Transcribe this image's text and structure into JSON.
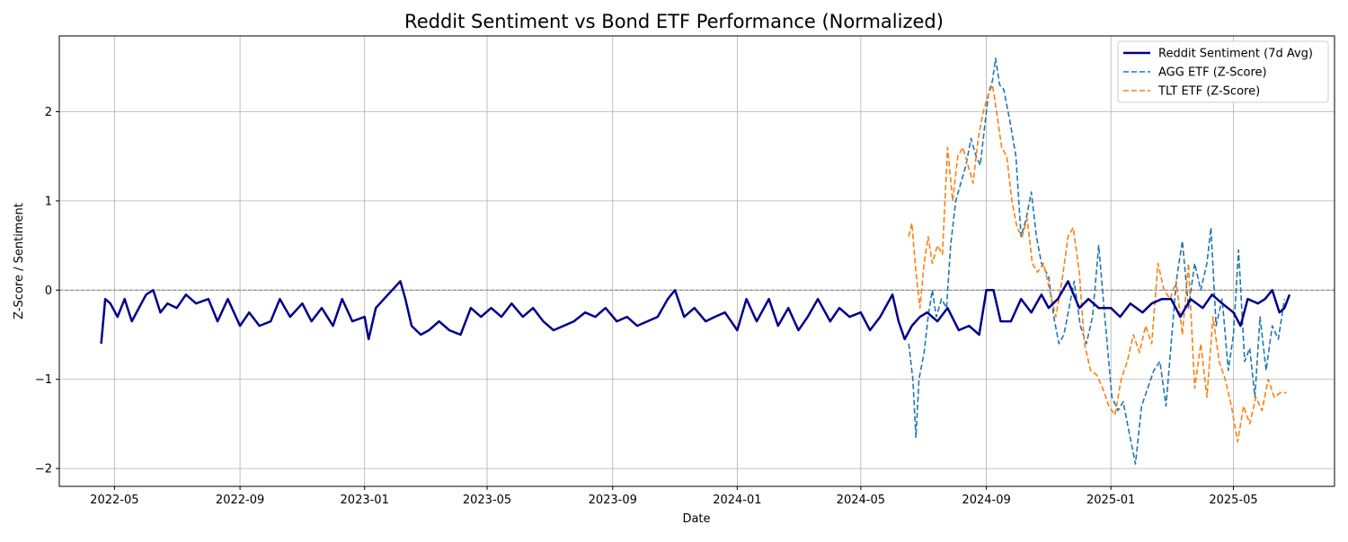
{
  "chart_data": {
    "type": "line",
    "title": "Reddit Sentiment vs Bond ETF Performance (Normalized)",
    "xlabel": "Date",
    "ylabel": "Z-Score / Sentiment",
    "xlim": [
      "2022-03-08",
      "2025-08-08"
    ],
    "ylim": [
      -2.2,
      2.85
    ],
    "x_ticks": [
      "2022-05",
      "2022-09",
      "2023-01",
      "2023-05",
      "2023-09",
      "2024-01",
      "2024-05",
      "2024-09",
      "2025-01",
      "2025-05"
    ],
    "y_ticks": [
      -2,
      -1,
      0,
      1,
      2
    ],
    "y_tick_labels": [
      "−2",
      "−1",
      "0",
      "1",
      "2"
    ],
    "grid": true,
    "reference_line": 0,
    "legend": {
      "position": "top-right"
    },
    "series": [
      {
        "name": "Reddit Sentiment (7d Avg)",
        "color": "#00008b",
        "style": "solid",
        "x": [
          "2022-04-18",
          "2022-04-22",
          "2022-04-27",
          "2022-05-04",
          "2022-05-11",
          "2022-05-18",
          "2022-05-25",
          "2022-06-01",
          "2022-06-08",
          "2022-06-15",
          "2022-06-22",
          "2022-07-01",
          "2022-07-10",
          "2022-07-20",
          "2022-08-01",
          "2022-08-10",
          "2022-08-20",
          "2022-09-01",
          "2022-09-10",
          "2022-09-20",
          "2022-10-01",
          "2022-10-10",
          "2022-10-20",
          "2022-11-01",
          "2022-11-10",
          "2022-11-20",
          "2022-12-01",
          "2022-12-10",
          "2022-12-20",
          "2023-01-01",
          "2023-01-05",
          "2023-01-12",
          "2023-01-20",
          "2023-01-28",
          "2023-02-05",
          "2023-02-10",
          "2023-02-16",
          "2023-02-25",
          "2023-03-05",
          "2023-03-15",
          "2023-03-25",
          "2023-04-05",
          "2023-04-15",
          "2023-04-25",
          "2023-05-05",
          "2023-05-15",
          "2023-05-25",
          "2023-06-05",
          "2023-06-15",
          "2023-06-25",
          "2023-07-05",
          "2023-07-15",
          "2023-07-25",
          "2023-08-05",
          "2023-08-15",
          "2023-08-25",
          "2023-09-05",
          "2023-09-15",
          "2023-09-25",
          "2023-10-05",
          "2023-10-15",
          "2023-10-25",
          "2023-11-01",
          "2023-11-10",
          "2023-11-20",
          "2023-12-01",
          "2023-12-10",
          "2023-12-20",
          "2024-01-01",
          "2024-01-10",
          "2024-01-20",
          "2024-02-01",
          "2024-02-10",
          "2024-02-20",
          "2024-03-01",
          "2024-03-10",
          "2024-03-20",
          "2024-04-01",
          "2024-04-10",
          "2024-04-20",
          "2024-05-01",
          "2024-05-10",
          "2024-05-20",
          "2024-06-01",
          "2024-06-07",
          "2024-06-13",
          "2024-06-20",
          "2024-06-28",
          "2024-07-05",
          "2024-07-15",
          "2024-07-25",
          "2024-08-05",
          "2024-08-15",
          "2024-08-25",
          "2024-09-01",
          "2024-09-08",
          "2024-09-15",
          "2024-09-25",
          "2024-10-05",
          "2024-10-15",
          "2024-10-25",
          "2024-11-01",
          "2024-11-10",
          "2024-11-20",
          "2024-12-01",
          "2024-12-10",
          "2024-12-20",
          "2025-01-01",
          "2025-01-10",
          "2025-01-20",
          "2025-02-01",
          "2025-02-10",
          "2025-02-20",
          "2025-03-01",
          "2025-03-10",
          "2025-03-20",
          "2025-04-01",
          "2025-04-10",
          "2025-04-20",
          "2025-05-01",
          "2025-05-08",
          "2025-05-15",
          "2025-05-25",
          "2025-06-01",
          "2025-06-08",
          "2025-06-15",
          "2025-06-20",
          "2025-06-25"
        ],
        "values": [
          -0.6,
          -0.1,
          -0.15,
          -0.3,
          -0.1,
          -0.35,
          -0.2,
          -0.05,
          0.0,
          -0.25,
          -0.15,
          -0.2,
          -0.05,
          -0.15,
          -0.1,
          -0.35,
          -0.1,
          -0.4,
          -0.25,
          -0.4,
          -0.35,
          -0.1,
          -0.3,
          -0.15,
          -0.35,
          -0.2,
          -0.4,
          -0.1,
          -0.35,
          -0.3,
          -0.55,
          -0.2,
          -0.1,
          0.0,
          0.1,
          -0.1,
          -0.4,
          -0.5,
          -0.45,
          -0.35,
          -0.45,
          -0.5,
          -0.2,
          -0.3,
          -0.2,
          -0.3,
          -0.15,
          -0.3,
          -0.2,
          -0.35,
          -0.45,
          -0.4,
          -0.35,
          -0.25,
          -0.3,
          -0.2,
          -0.35,
          -0.3,
          -0.4,
          -0.35,
          -0.3,
          -0.1,
          0.0,
          -0.3,
          -0.2,
          -0.35,
          -0.3,
          -0.25,
          -0.45,
          -0.1,
          -0.35,
          -0.1,
          -0.4,
          -0.2,
          -0.45,
          -0.3,
          -0.1,
          -0.35,
          -0.2,
          -0.3,
          -0.25,
          -0.45,
          -0.3,
          -0.05,
          -0.35,
          -0.55,
          -0.4,
          -0.3,
          -0.25,
          -0.35,
          -0.2,
          -0.45,
          -0.4,
          -0.5,
          0.0,
          0.0,
          -0.35,
          -0.35,
          -0.1,
          -0.25,
          -0.05,
          -0.2,
          -0.1,
          0.1,
          -0.2,
          -0.1,
          -0.2,
          -0.2,
          -0.3,
          -0.15,
          -0.25,
          -0.15,
          -0.1,
          -0.1,
          -0.3,
          -0.1,
          -0.2,
          -0.05,
          -0.15,
          -0.25,
          -0.4,
          -0.1,
          -0.15,
          -0.1,
          0.0,
          -0.25,
          -0.2,
          -0.05
        ]
      },
      {
        "name": "AGG ETF (Z-Score)",
        "color": "#1f77b4",
        "style": "dashed",
        "x": [
          "2024-06-17",
          "2024-06-21",
          "2024-06-24",
          "2024-06-27",
          "2024-07-02",
          "2024-07-06",
          "2024-07-10",
          "2024-07-14",
          "2024-07-19",
          "2024-07-24",
          "2024-07-28",
          "2024-08-02",
          "2024-08-07",
          "2024-08-12",
          "2024-08-17",
          "2024-08-22",
          "2024-08-26",
          "2024-08-30",
          "2024-09-03",
          "2024-09-07",
          "2024-09-10",
          "2024-09-14",
          "2024-09-18",
          "2024-09-24",
          "2024-09-30",
          "2024-10-05",
          "2024-10-10",
          "2024-10-15",
          "2024-10-20",
          "2024-10-25",
          "2024-11-01",
          "2024-11-06",
          "2024-11-11",
          "2024-11-16",
          "2024-11-21",
          "2024-11-26",
          "2024-12-02",
          "2024-12-08",
          "2024-12-14",
          "2024-12-20",
          "2024-12-26",
          "2025-01-02",
          "2025-01-08",
          "2025-01-13",
          "2025-01-19",
          "2025-01-25",
          "2025-01-31",
          "2025-02-06",
          "2025-02-12",
          "2025-02-18",
          "2025-02-24",
          "2025-03-01",
          "2025-03-06",
          "2025-03-12",
          "2025-03-18",
          "2025-03-24",
          "2025-03-30",
          "2025-04-05",
          "2025-04-09",
          "2025-04-14",
          "2025-04-20",
          "2025-04-26",
          "2025-05-01",
          "2025-05-06",
          "2025-05-12",
          "2025-05-17",
          "2025-05-22",
          "2025-05-27",
          "2025-06-02",
          "2025-06-08",
          "2025-06-14",
          "2025-06-20"
        ],
        "values": [
          -0.6,
          -1.0,
          -1.65,
          -1.0,
          -0.7,
          -0.3,
          0.0,
          -0.3,
          -0.1,
          -0.2,
          0.5,
          1.0,
          1.2,
          1.4,
          1.7,
          1.5,
          1.4,
          1.8,
          2.2,
          2.35,
          2.6,
          2.3,
          2.25,
          1.9,
          1.5,
          0.6,
          0.8,
          1.1,
          0.6,
          0.3,
          0.15,
          -0.3,
          -0.6,
          -0.5,
          -0.2,
          0.1,
          -0.4,
          -0.6,
          -0.3,
          0.5,
          -0.3,
          -1.2,
          -1.35,
          -1.25,
          -1.6,
          -1.95,
          -1.3,
          -1.1,
          -0.9,
          -0.8,
          -1.3,
          -0.6,
          0.1,
          0.55,
          -0.2,
          0.3,
          0.0,
          0.3,
          0.7,
          -0.4,
          -0.1,
          -0.9,
          -0.5,
          0.45,
          -0.8,
          -0.65,
          -1.2,
          -0.3,
          -0.9,
          -0.4,
          -0.55,
          -0.1
        ]
      },
      {
        "name": "TLT ETF (Z-Score)",
        "color": "#ff7f0e",
        "style": "dashed",
        "x": [
          "2024-06-17",
          "2024-06-20",
          "2024-06-24",
          "2024-06-28",
          "2024-07-02",
          "2024-07-06",
          "2024-07-10",
          "2024-07-15",
          "2024-07-20",
          "2024-07-25",
          "2024-07-30",
          "2024-08-04",
          "2024-08-09",
          "2024-08-14",
          "2024-08-19",
          "2024-08-24",
          "2024-08-29",
          "2024-09-03",
          "2024-09-07",
          "2024-09-11",
          "2024-09-16",
          "2024-09-21",
          "2024-09-26",
          "2024-10-01",
          "2024-10-06",
          "2024-10-11",
          "2024-10-16",
          "2024-10-21",
          "2024-10-27",
          "2024-11-02",
          "2024-11-08",
          "2024-11-14",
          "2024-11-20",
          "2024-11-25",
          "2024-12-01",
          "2024-12-06",
          "2024-12-12",
          "2024-12-18",
          "2024-12-24",
          "2024-12-30",
          "2025-01-05",
          "2025-01-11",
          "2025-01-17",
          "2025-01-23",
          "2025-01-29",
          "2025-02-04",
          "2025-02-10",
          "2025-02-16",
          "2025-02-22",
          "2025-02-28",
          "2025-03-06",
          "2025-03-12",
          "2025-03-18",
          "2025-03-24",
          "2025-03-30",
          "2025-04-05",
          "2025-04-11",
          "2025-04-17",
          "2025-04-23",
          "2025-04-29",
          "2025-05-05",
          "2025-05-11",
          "2025-05-17",
          "2025-05-23",
          "2025-05-29",
          "2025-06-04",
          "2025-06-10",
          "2025-06-16",
          "2025-06-22"
        ],
        "values": [
          0.6,
          0.75,
          0.2,
          -0.2,
          0.3,
          0.6,
          0.3,
          0.5,
          0.4,
          1.6,
          1.0,
          1.5,
          1.6,
          1.4,
          1.2,
          1.7,
          2.0,
          2.2,
          2.3,
          2.0,
          1.6,
          1.5,
          1.0,
          0.7,
          0.6,
          0.8,
          0.3,
          0.2,
          0.3,
          0.0,
          -0.3,
          0.1,
          0.6,
          0.7,
          0.2,
          -0.6,
          -0.9,
          -0.95,
          -1.1,
          -1.3,
          -1.4,
          -1.0,
          -0.8,
          -0.5,
          -0.7,
          -0.4,
          -0.6,
          0.3,
          0.0,
          -0.1,
          0.1,
          -0.5,
          0.3,
          -1.1,
          -0.6,
          -1.2,
          -0.3,
          -0.8,
          -1.0,
          -1.3,
          -1.7,
          -1.3,
          -1.5,
          -1.2,
          -1.35,
          -1.0,
          -1.2,
          -1.15,
          -1.15
        ]
      }
    ]
  }
}
